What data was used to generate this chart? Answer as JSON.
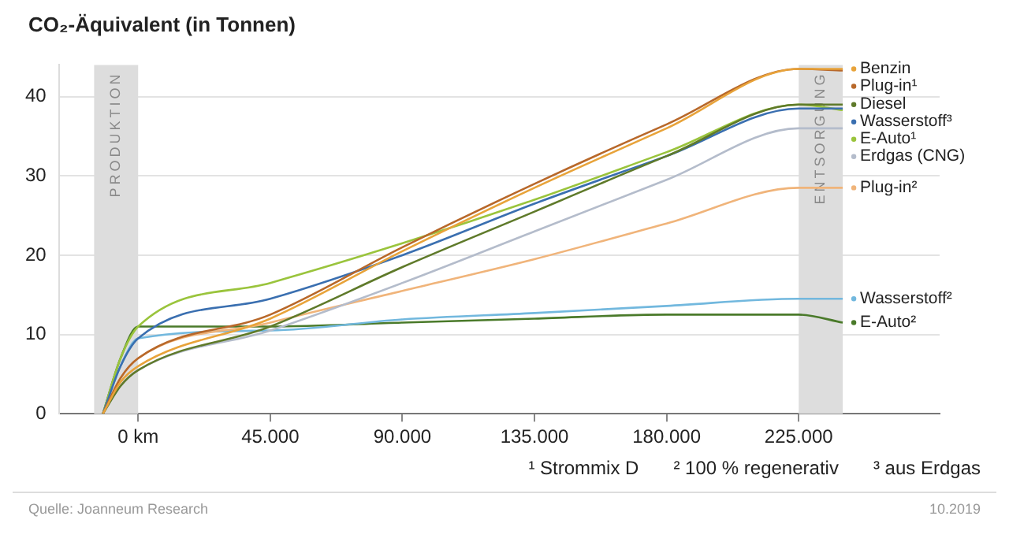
{
  "chart_data": {
    "type": "line",
    "title": "CO₂-Äquivalent (in Tonnen)",
    "x": [
      -12000,
      -6000,
      0,
      45000,
      90000,
      135000,
      180000,
      225000,
      240000
    ],
    "series": [
      {
        "name": "Benzin",
        "color": "#e8a33a",
        "values": [
          0,
          4,
          6,
          12,
          20.5,
          28.5,
          36,
          43.5,
          43.5
        ]
      },
      {
        "name": "Plug-in¹",
        "color": "#b8682a",
        "values": [
          0,
          4.5,
          7,
          12.5,
          21,
          29,
          36.5,
          43.5,
          43.3
        ]
      },
      {
        "name": "Diesel",
        "color": "#5f7a2a",
        "values": [
          0,
          3.5,
          5.5,
          11,
          18.5,
          25.5,
          32.5,
          39,
          39
        ]
      },
      {
        "name": "Wasserstoff³",
        "color": "#3a6fb0",
        "values": [
          0,
          6,
          9.5,
          14.5,
          20,
          26.5,
          32.5,
          38.5,
          38.5
        ]
      },
      {
        "name": "E-Auto¹",
        "color": "#9ac43c",
        "values": [
          0,
          7,
          11,
          16.5,
          21.5,
          27,
          33,
          39,
          38.3
        ]
      },
      {
        "name": "Erdgas (CNG)",
        "color": "#b4bccb",
        "values": [
          0,
          3.5,
          5.5,
          10.5,
          16.5,
          23,
          29.5,
          36,
          36
        ]
      },
      {
        "name": "Plug-in²",
        "color": "#f0b47a",
        "values": [
          0,
          4.5,
          7,
          11.5,
          15.5,
          19.5,
          24,
          28.5,
          28.5
        ]
      },
      {
        "name": "Wasserstoff²",
        "color": "#72b8de",
        "values": [
          0,
          6,
          9.5,
          10.5,
          11.9,
          12.7,
          13.6,
          14.5,
          14.5
        ]
      },
      {
        "name": "E-Auto²",
        "color": "#4a7a2a",
        "values": [
          0,
          7,
          11,
          11,
          11.5,
          12,
          12.5,
          12.5,
          11.5
        ]
      }
    ],
    "xlim": [
      -27000,
      273000
    ],
    "xticks": [
      {
        "value": 0,
        "label": "0 km"
      },
      {
        "value": 45000,
        "label": "45.000"
      },
      {
        "value": 90000,
        "label": "90.000"
      },
      {
        "value": 135000,
        "label": "135.000"
      },
      {
        "value": 180000,
        "label": "180.000"
      },
      {
        "value": 225000,
        "label": "225.000"
      }
    ],
    "ylim": [
      0,
      44
    ],
    "yticks": [
      0,
      10,
      20,
      30,
      40
    ],
    "grid": "y",
    "legend": "right",
    "marker": "none",
    "line_style": "solid",
    "bands": [
      {
        "axis": "x",
        "from": -15000,
        "to": 0,
        "label": "PRODUKTION",
        "color": "#dddddd"
      },
      {
        "axis": "x",
        "from": 225000,
        "to": 240000,
        "label": "ENTSORGUNG",
        "color": "#dddddd"
      }
    ],
    "annotations": [
      "¹ Strommix D",
      "² 100 % regenerativ",
      "³ aus Erdgas",
      "Quelle: Joanneum Research",
      "10.2019"
    ]
  }
}
